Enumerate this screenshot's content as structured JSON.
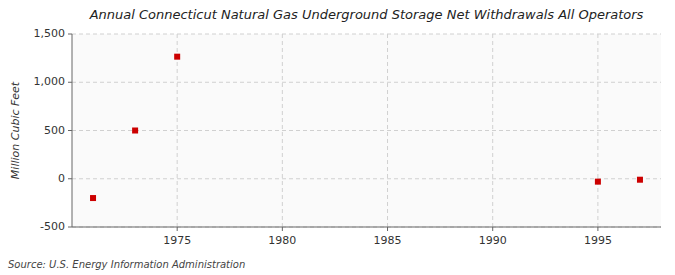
{
  "chart_data": {
    "type": "scatter",
    "title": "Annual Connecticut Natural Gas Underground Storage Net Withdrawals All Operators",
    "y_label": "Million Cubic Feet",
    "annotations": [
      "Source: U.S. Energy Information Administration"
    ],
    "x": [
      1971,
      1973,
      1975,
      1995,
      1997
    ],
    "values": [
      -200,
      500,
      1265,
      -30,
      -10
    ],
    "color": "#cc0000",
    "marker": "square",
    "xlim": [
      1970,
      1998
    ],
    "ylim": [
      -500,
      1500
    ],
    "xticks": [
      1975,
      1980,
      1985,
      1990,
      1995
    ],
    "yticks": [
      -500,
      0,
      500,
      {
        "value": 1000,
        "label": "1,000"
      },
      {
        "value": 1500,
        "label": "1,500"
      }
    ],
    "grid": true
  }
}
